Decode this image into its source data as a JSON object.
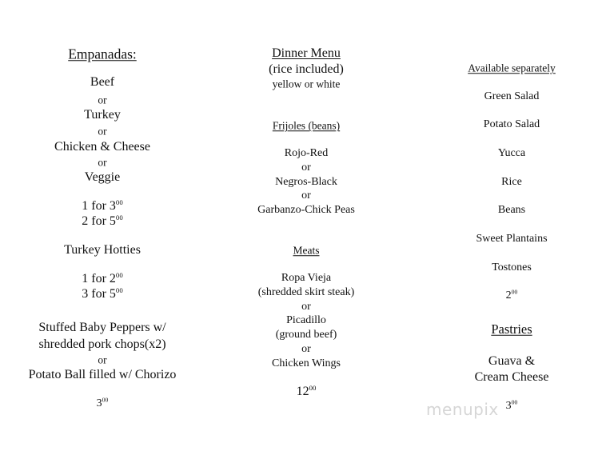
{
  "empanadas": {
    "title": "Empanadas:",
    "items": [
      "Beef",
      "or",
      "Turkey",
      "or",
      "Chicken & Cheese",
      "or",
      "Veggie"
    ],
    "prices": [
      {
        "text": "1 for 3",
        "sup": "00"
      },
      {
        "text": "2 for 5",
        "sup": "00"
      }
    ],
    "hotties_title": "Turkey Hotties",
    "hotties_prices": [
      {
        "text": "1 for 2",
        "sup": "00"
      },
      {
        "text": "3 for 5",
        "sup": "00"
      }
    ],
    "extras": [
      "Stuffed Baby Peppers w/",
      "shredded  pork chops(x2)",
      "or",
      "Potato Ball filled w/ Chorizo"
    ],
    "extras_price": {
      "text": "3",
      "sup": "00"
    }
  },
  "dinner": {
    "title": "Dinner Menu",
    "subtitle": "(rice included)",
    "rice_options": "yellow or white",
    "beans_title": "Frijoles (beans)",
    "beans": [
      "Rojo-Red",
      "or",
      "Negros-Black",
      "or",
      "Garbanzo-Chick Peas"
    ],
    "meats_title": "Meats",
    "meats": [
      "Ropa Vieja",
      "(shredded skirt steak)",
      "or",
      "Picadillo",
      "(ground beef)",
      "or",
      "Chicken Wings"
    ],
    "price": {
      "text": "12",
      "sup": "00"
    }
  },
  "sides": {
    "title": "Available separately",
    "items": [
      "Green Salad",
      "Potato Salad",
      "Yucca",
      "Rice",
      "Beans",
      "Sweet Plantains",
      "Tostones"
    ],
    "price": {
      "text": "2",
      "sup": "00"
    },
    "pastries_title": "Pastries",
    "pastries": [
      "Guava &",
      "Cream Cheese"
    ],
    "pastries_price": {
      "text": "3",
      "sup": "00"
    }
  },
  "watermark": "menupix"
}
